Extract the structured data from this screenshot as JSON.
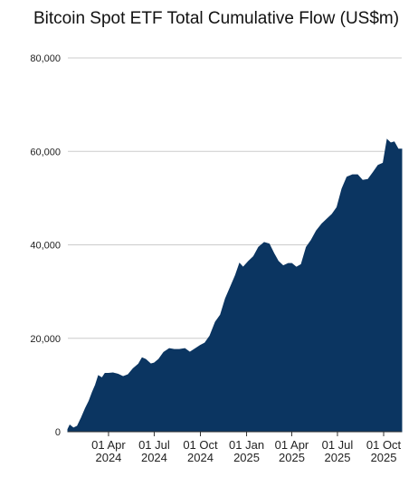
{
  "chart_data": {
    "type": "area",
    "title": "Bitcoin Spot ETF Total Cumulative Flow (US$m)",
    "xlabel": "",
    "ylabel": "",
    "ylim": [
      0,
      80000
    ],
    "y_ticks": [
      "80,000",
      "60,000",
      "40,000",
      "20,000",
      "0"
    ],
    "y_tick_values": [
      80000,
      60000,
      40000,
      20000,
      0
    ],
    "x_range": [
      "2024-01-11",
      "2025-11-06"
    ],
    "x_ticks": [
      {
        "date": "2024-04-01",
        "line1": "01 Apr",
        "line2": "2024"
      },
      {
        "date": "2024-07-01",
        "line1": "01 Jul",
        "line2": "2024"
      },
      {
        "date": "2024-10-01",
        "line1": "01 Oct",
        "line2": "2024"
      },
      {
        "date": "2025-01-01",
        "line1": "01 Jan",
        "line2": "2025"
      },
      {
        "date": "2025-04-01",
        "line1": "01 Apr",
        "line2": "2025"
      },
      {
        "date": "2025-07-01",
        "line1": "01 Jul",
        "line2": "2025"
      },
      {
        "date": "2025-10-01",
        "line1": "01 Oct",
        "line2": "2025"
      }
    ],
    "grid": true,
    "colors": {
      "fill": "#0b3561",
      "grid": "#cccccc"
    },
    "series": [
      {
        "values": [
          [
            "2024-01-11",
            500
          ],
          [
            "2024-01-15",
            1400
          ],
          [
            "2024-01-22",
            800
          ],
          [
            "2024-01-30",
            1200
          ],
          [
            "2024-02-07",
            3000
          ],
          [
            "2024-02-15",
            5000
          ],
          [
            "2024-02-22",
            6500
          ],
          [
            "2024-02-29",
            8500
          ],
          [
            "2024-03-06",
            10000
          ],
          [
            "2024-03-12",
            12000
          ],
          [
            "2024-03-19",
            11500
          ],
          [
            "2024-03-25",
            12500
          ],
          [
            "2024-04-01",
            12500
          ],
          [
            "2024-04-10",
            12600
          ],
          [
            "2024-04-20",
            12300
          ],
          [
            "2024-04-30",
            11800
          ],
          [
            "2024-05-10",
            12200
          ],
          [
            "2024-05-20",
            13500
          ],
          [
            "2024-05-31",
            14500
          ],
          [
            "2024-06-07",
            15800
          ],
          [
            "2024-06-14",
            15500
          ],
          [
            "2024-06-24",
            14500
          ],
          [
            "2024-07-01",
            14700
          ],
          [
            "2024-07-10",
            15500
          ],
          [
            "2024-07-20",
            17000
          ],
          [
            "2024-07-31",
            17800
          ],
          [
            "2024-08-10",
            17600
          ],
          [
            "2024-08-20",
            17600
          ],
          [
            "2024-08-31",
            17800
          ],
          [
            "2024-09-10",
            17000
          ],
          [
            "2024-09-20",
            17700
          ],
          [
            "2024-10-01",
            18500
          ],
          [
            "2024-10-10",
            19000
          ],
          [
            "2024-10-20",
            20500
          ],
          [
            "2024-10-31",
            23500
          ],
          [
            "2024-11-10",
            25000
          ],
          [
            "2024-11-20",
            28500
          ],
          [
            "2024-11-30",
            31000
          ],
          [
            "2024-12-10",
            33500
          ],
          [
            "2024-12-18",
            36000
          ],
          [
            "2024-12-25",
            35200
          ],
          [
            "2025-01-05",
            36500
          ],
          [
            "2025-01-15",
            37500
          ],
          [
            "2025-01-25",
            39500
          ],
          [
            "2025-02-05",
            40500
          ],
          [
            "2025-02-15",
            40200
          ],
          [
            "2025-02-25",
            38000
          ],
          [
            "2025-03-05",
            36500
          ],
          [
            "2025-03-15",
            35500
          ],
          [
            "2025-03-25",
            36000
          ],
          [
            "2025-04-01",
            36000
          ],
          [
            "2025-04-10",
            35200
          ],
          [
            "2025-04-20",
            35800
          ],
          [
            "2025-04-30",
            39500
          ],
          [
            "2025-05-10",
            41000
          ],
          [
            "2025-05-20",
            43000
          ],
          [
            "2025-05-31",
            44500
          ],
          [
            "2025-06-10",
            45500
          ],
          [
            "2025-06-20",
            46500
          ],
          [
            "2025-06-30",
            48000
          ],
          [
            "2025-07-10",
            52000
          ],
          [
            "2025-07-20",
            54500
          ],
          [
            "2025-07-31",
            55000
          ],
          [
            "2025-08-10",
            55000
          ],
          [
            "2025-08-20",
            53800
          ],
          [
            "2025-08-31",
            54000
          ],
          [
            "2025-09-10",
            55500
          ],
          [
            "2025-09-20",
            57000
          ],
          [
            "2025-09-30",
            57500
          ],
          [
            "2025-10-08",
            62500
          ],
          [
            "2025-10-15",
            61800
          ],
          [
            "2025-10-22",
            62000
          ],
          [
            "2025-10-30",
            60500
          ],
          [
            "2025-11-06",
            60500
          ]
        ]
      }
    ]
  }
}
